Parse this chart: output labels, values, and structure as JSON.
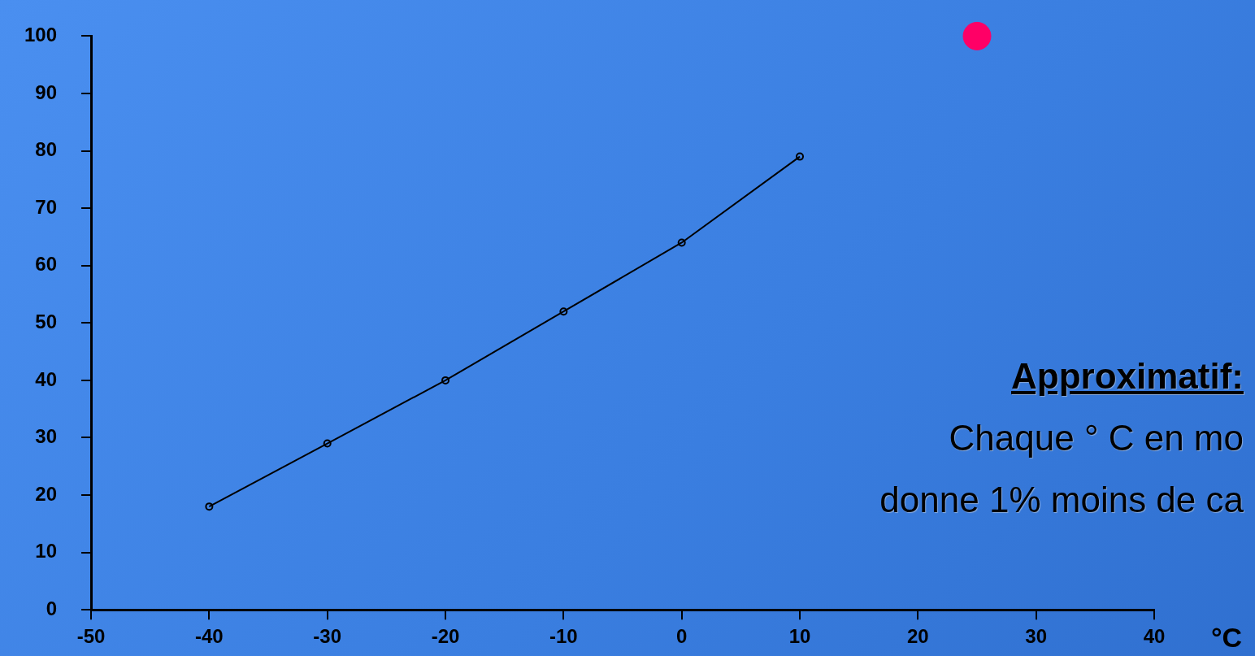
{
  "chart_data": {
    "type": "line",
    "xlabel": "°C",
    "series": [
      {
        "type": "line",
        "color": "#000000",
        "x": [
          -40,
          -30,
          -20,
          -10,
          0,
          10
        ],
        "values": [
          18,
          29,
          40,
          52,
          64,
          79
        ],
        "marker": "circle"
      },
      {
        "type": "scatter",
        "color": "#ff0066",
        "x": [
          25
        ],
        "values": [
          100
        ],
        "marker": "circle"
      }
    ],
    "xlim": [
      -50,
      40
    ],
    "xticks": [
      -50,
      -40,
      -30,
      -20,
      -10,
      0,
      10,
      20,
      30,
      40
    ],
    "ylim": [
      0,
      100
    ],
    "yticks": [
      0,
      10,
      20,
      30,
      40,
      50,
      60,
      70,
      80,
      90,
      100
    ],
    "grid": false,
    "legend": false,
    "line_style": "solid",
    "annotations": [
      "Approximatif:",
      "Chaque ° C en mo",
      "donne 1% moins de ca"
    ]
  }
}
